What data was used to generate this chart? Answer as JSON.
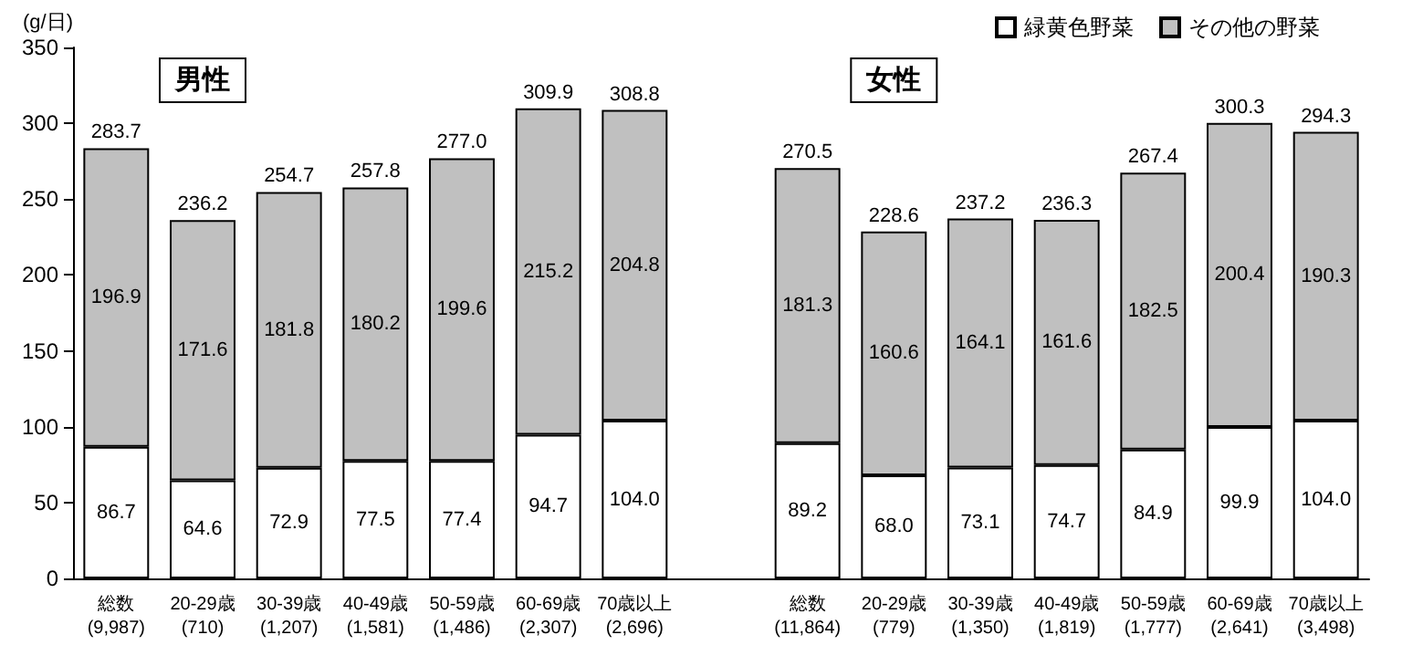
{
  "chart_data": {
    "type": "bar",
    "stacked": true,
    "ylabel": "(g/日)",
    "categories": [
      "総数\n(9,987)",
      "20-29歳\n(710)",
      "30-39歳\n(1,207)",
      "40-49歳\n(1,581)",
      "50-59歳\n(1,486)",
      "60-69歳\n(2,307)",
      "70歳以上\n(2,696)",
      null,
      "総数\n(11,864)",
      "20-29歳\n(779)",
      "30-39歳\n(1,350)",
      "40-49歳\n(1,819)",
      "50-59歳\n(1,777)",
      "60-69歳\n(2,641)",
      "70歳以上\n(3,498)"
    ],
    "series": [
      {
        "name": "緑黄色野菜",
        "color": "#ffffff",
        "values": [
          86.7,
          64.6,
          72.9,
          77.5,
          77.4,
          94.7,
          104.0,
          null,
          89.2,
          68.0,
          73.1,
          74.7,
          84.9,
          99.9,
          104.0
        ],
        "value_labels": [
          "86.7",
          "64.6",
          "72.9",
          "77.5",
          "77.4",
          "94.7",
          "104.0",
          null,
          "89.2",
          "68.0",
          "73.1",
          "74.7",
          "84.9",
          "99.9",
          "104.0"
        ]
      },
      {
        "name": "その他の野菜",
        "color": "#c0c0c0",
        "values": [
          196.9,
          171.6,
          181.8,
          180.2,
          199.6,
          215.2,
          204.8,
          null,
          181.3,
          160.6,
          164.1,
          161.6,
          182.5,
          200.4,
          190.3
        ],
        "value_labels": [
          "196.9",
          "171.6",
          "181.8",
          "180.2",
          "199.6",
          "215.2",
          "204.8",
          null,
          "181.3",
          "160.6",
          "164.1",
          "161.6",
          "182.5",
          "200.4",
          "190.3"
        ]
      }
    ],
    "totals": [
      "283.7",
      "236.2",
      "254.7",
      "257.8",
      "277.0",
      "309.9",
      "308.8",
      null,
      "270.5",
      "228.6",
      "237.2",
      "236.3",
      "267.4",
      "300.3",
      "294.3"
    ],
    "annotations": [
      "男性",
      "女性"
    ],
    "ylim": [
      0,
      350
    ],
    "yticks": [
      0,
      50,
      100,
      150,
      200,
      250,
      300,
      350
    ],
    "grid": false,
    "legend": "top right"
  }
}
